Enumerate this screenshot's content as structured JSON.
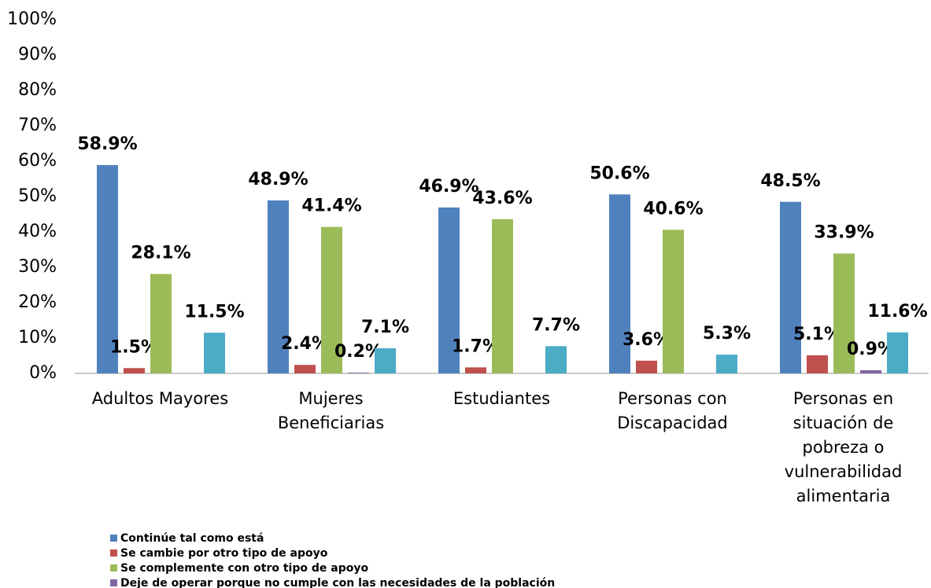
{
  "chart_data": {
    "type": "bar",
    "categories": [
      "Adultos Mayores",
      "Mujeres Beneficiarias",
      "Estudiantes",
      "Personas con Discapacidad",
      "Personas en situación de pobreza o vulnerabilidad alimentaria"
    ],
    "series": [
      {
        "name": "Continúe tal como está",
        "color": "#4f81bd",
        "values": [
          58.9,
          48.9,
          46.9,
          50.6,
          48.5
        ],
        "value_labels": [
          "58.9%",
          "48.9%",
          "46.9%",
          "50.6%",
          "48.5%"
        ]
      },
      {
        "name": "Se cambie por otro tipo de apoyo",
        "color": "#c0504d",
        "values": [
          1.5,
          2.4,
          1.7,
          3.6,
          5.1
        ],
        "value_labels": [
          "1.5%",
          "2.4%",
          "1.7%",
          "3.6%",
          "5.1%"
        ]
      },
      {
        "name": "Se complemente con otro tipo de apoyo",
        "color": "#9bbb59",
        "values": [
          28.1,
          41.4,
          43.6,
          40.6,
          33.9
        ],
        "value_labels": [
          "28.1%",
          "41.4%",
          "43.6%",
          "40.6%",
          "33.9%"
        ]
      },
      {
        "name": "Deje de operar porque no cumple con las necesidades de la población",
        "color": "#8064a2",
        "values": [
          null,
          0.2,
          null,
          null,
          0.9
        ],
        "value_labels": [
          null,
          "0.2%",
          null,
          null,
          "0.9%"
        ]
      },
      {
        "color": "#4bacc6",
        "values": [
          11.5,
          7.1,
          7.7,
          5.3,
          11.6
        ],
        "value_labels": [
          "11.5%",
          "7.1%",
          "7.7%",
          "5.3%",
          "11.6%"
        ]
      }
    ],
    "ylim": [
      0,
      100
    ],
    "yticks": [
      {
        "value": 0,
        "label": "0%"
      },
      {
        "value": 10,
        "label": "10%"
      },
      {
        "value": 20,
        "label": "20%"
      },
      {
        "value": 30,
        "label": "30%"
      },
      {
        "value": 40,
        "label": "40%"
      },
      {
        "value": 50,
        "label": "50%"
      },
      {
        "value": 60,
        "label": "60%"
      },
      {
        "value": 70,
        "label": "70%"
      },
      {
        "value": 80,
        "label": "80%"
      },
      {
        "value": 90,
        "label": "90%"
      },
      {
        "value": 100,
        "label": "100%"
      }
    ],
    "grid": false,
    "legend": "bottom"
  }
}
